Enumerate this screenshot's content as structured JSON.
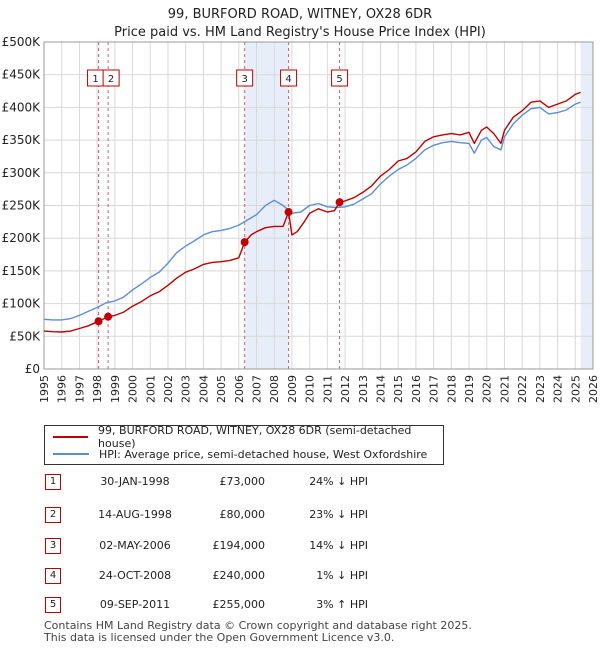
{
  "chart_data": {
    "type": "line",
    "title": "99, BURFORD ROAD, WITNEY, OX28 6DR",
    "subtitle": "Price paid vs. HM Land Registry's House Price Index (HPI)",
    "xlim": [
      1995,
      2026
    ],
    "ylim": [
      0,
      500000
    ],
    "x_ticks": [
      1995,
      1996,
      1997,
      1998,
      1999,
      2000,
      2001,
      2002,
      2003,
      2004,
      2005,
      2006,
      2007,
      2008,
      2009,
      2010,
      2011,
      2012,
      2013,
      2014,
      2015,
      2016,
      2017,
      2018,
      2019,
      2020,
      2021,
      2022,
      2023,
      2024,
      2025,
      2026
    ],
    "y_ticks": [
      {
        "value": 0,
        "label": "£0"
      },
      {
        "value": 50000,
        "label": "£50K"
      },
      {
        "value": 100000,
        "label": "£100K"
      },
      {
        "value": 150000,
        "label": "£150K"
      },
      {
        "value": 200000,
        "label": "£200K"
      },
      {
        "value": 250000,
        "label": "£250K"
      },
      {
        "value": 300000,
        "label": "£300K"
      },
      {
        "value": 350000,
        "label": "£350K"
      },
      {
        "value": 400000,
        "label": "£400K"
      },
      {
        "value": 450000,
        "label": "£450K"
      },
      {
        "value": 500000,
        "label": "£500K"
      }
    ],
    "shaded_bands": [
      [
        2006.33,
        2008.81
      ],
      [
        2025.3,
        2026
      ]
    ],
    "series": [
      {
        "name": "99, BURFORD ROAD, WITNEY, OX28 6DR (semi-detached house)",
        "color": "#c00000",
        "points": [
          [
            1995,
            58000
          ],
          [
            1995.5,
            57000
          ],
          [
            1996,
            56500
          ],
          [
            1996.5,
            58000
          ],
          [
            1997,
            62000
          ],
          [
            1997.5,
            66000
          ],
          [
            1998.08,
            73000
          ],
          [
            1998.62,
            80000
          ],
          [
            1999,
            82000
          ],
          [
            1999.5,
            87000
          ],
          [
            2000,
            96000
          ],
          [
            2000.5,
            103000
          ],
          [
            2001,
            112000
          ],
          [
            2001.5,
            118000
          ],
          [
            2002,
            128000
          ],
          [
            2002.5,
            139000
          ],
          [
            2003,
            148000
          ],
          [
            2003.5,
            153000
          ],
          [
            2004,
            160000
          ],
          [
            2004.5,
            163000
          ],
          [
            2005,
            164000
          ],
          [
            2005.5,
            166000
          ],
          [
            2006,
            170000
          ],
          [
            2006.33,
            194000
          ],
          [
            2006.7,
            205000
          ],
          [
            2007,
            210000
          ],
          [
            2007.5,
            216000
          ],
          [
            2008,
            218000
          ],
          [
            2008.5,
            218000
          ],
          [
            2008.81,
            240000
          ],
          [
            2009,
            205000
          ],
          [
            2009.3,
            210000
          ],
          [
            2009.7,
            225000
          ],
          [
            2010,
            238000
          ],
          [
            2010.5,
            245000
          ],
          [
            2011,
            240000
          ],
          [
            2011.4,
            242000
          ],
          [
            2011.69,
            255000
          ],
          [
            2012,
            257000
          ],
          [
            2012.5,
            262000
          ],
          [
            2013,
            270000
          ],
          [
            2013.5,
            280000
          ],
          [
            2014,
            295000
          ],
          [
            2014.5,
            305000
          ],
          [
            2015,
            318000
          ],
          [
            2015.5,
            322000
          ],
          [
            2016,
            332000
          ],
          [
            2016.5,
            348000
          ],
          [
            2017,
            355000
          ],
          [
            2017.5,
            358000
          ],
          [
            2018,
            360000
          ],
          [
            2018.5,
            358000
          ],
          [
            2019,
            362000
          ],
          [
            2019.3,
            345000
          ],
          [
            2019.7,
            365000
          ],
          [
            2020,
            370000
          ],
          [
            2020.4,
            360000
          ],
          [
            2020.8,
            345000
          ],
          [
            2021,
            365000
          ],
          [
            2021.5,
            385000
          ],
          [
            2022,
            395000
          ],
          [
            2022.5,
            408000
          ],
          [
            2023,
            410000
          ],
          [
            2023.5,
            400000
          ],
          [
            2024,
            405000
          ],
          [
            2024.5,
            410000
          ],
          [
            2025,
            420000
          ],
          [
            2025.3,
            423000
          ]
        ]
      },
      {
        "name": "HPI: Average price, semi-detached house, West Oxfordshire",
        "color": "#5b8ed4",
        "points": [
          [
            1995,
            76000
          ],
          [
            1995.5,
            75000
          ],
          [
            1996,
            75000
          ],
          [
            1996.5,
            77000
          ],
          [
            1997,
            82000
          ],
          [
            1997.5,
            88000
          ],
          [
            1998,
            94000
          ],
          [
            1998.5,
            101000
          ],
          [
            1999,
            104000
          ],
          [
            1999.5,
            110000
          ],
          [
            2000,
            121000
          ],
          [
            2000.5,
            130000
          ],
          [
            2001,
            140000
          ],
          [
            2001.5,
            148000
          ],
          [
            2002,
            162000
          ],
          [
            2002.5,
            178000
          ],
          [
            2003,
            188000
          ],
          [
            2003.5,
            196000
          ],
          [
            2004,
            205000
          ],
          [
            2004.5,
            210000
          ],
          [
            2005,
            212000
          ],
          [
            2005.5,
            215000
          ],
          [
            2006,
            220000
          ],
          [
            2006.5,
            228000
          ],
          [
            2007,
            236000
          ],
          [
            2007.5,
            250000
          ],
          [
            2008,
            258000
          ],
          [
            2008.5,
            250000
          ],
          [
            2009,
            238000
          ],
          [
            2009.5,
            240000
          ],
          [
            2010,
            250000
          ],
          [
            2010.5,
            253000
          ],
          [
            2011,
            248000
          ],
          [
            2011.5,
            247000
          ],
          [
            2012,
            248000
          ],
          [
            2012.5,
            252000
          ],
          [
            2013,
            260000
          ],
          [
            2013.5,
            268000
          ],
          [
            2014,
            283000
          ],
          [
            2014.5,
            295000
          ],
          [
            2015,
            305000
          ],
          [
            2015.5,
            312000
          ],
          [
            2016,
            322000
          ],
          [
            2016.5,
            335000
          ],
          [
            2017,
            342000
          ],
          [
            2017.5,
            346000
          ],
          [
            2018,
            348000
          ],
          [
            2018.5,
            346000
          ],
          [
            2019,
            345000
          ],
          [
            2019.3,
            330000
          ],
          [
            2019.7,
            350000
          ],
          [
            2020,
            354000
          ],
          [
            2020.4,
            340000
          ],
          [
            2020.8,
            335000
          ],
          [
            2021,
            355000
          ],
          [
            2021.5,
            375000
          ],
          [
            2022,
            388000
          ],
          [
            2022.5,
            398000
          ],
          [
            2023,
            400000
          ],
          [
            2023.5,
            390000
          ],
          [
            2024,
            392000
          ],
          [
            2024.5,
            396000
          ],
          [
            2025,
            405000
          ],
          [
            2025.3,
            408000
          ]
        ]
      }
    ],
    "sales": [
      {
        "id": "1",
        "x": 1998.08,
        "value": 73000
      },
      {
        "id": "2",
        "x": 1998.62,
        "value": 80000
      },
      {
        "id": "3",
        "x": 2006.33,
        "value": 194000
      },
      {
        "id": "4",
        "x": 2008.81,
        "value": 240000
      },
      {
        "id": "5",
        "x": 2011.69,
        "value": 255000
      }
    ]
  },
  "legend": {
    "items": [
      {
        "label": "99, BURFORD ROAD, WITNEY, OX28 6DR (semi-detached house)",
        "color": "#c00000"
      },
      {
        "label": "HPI: Average price, semi-detached house, West Oxfordshire",
        "color": "#5b8ed4"
      }
    ]
  },
  "transactions": [
    {
      "num": "1",
      "date": "30-JAN-1998",
      "price": "£73,000",
      "delta": "24% ↓ HPI"
    },
    {
      "num": "2",
      "date": "14-AUG-1998",
      "price": "£80,000",
      "delta": "23% ↓ HPI"
    },
    {
      "num": "3",
      "date": "02-MAY-2006",
      "price": "£194,000",
      "delta": "14% ↓ HPI"
    },
    {
      "num": "4",
      "date": "24-OCT-2008",
      "price": "£240,000",
      "delta": "1% ↓ HPI"
    },
    {
      "num": "5",
      "date": "09-SEP-2011",
      "price": "£255,000",
      "delta": "3% ↑ HPI"
    }
  ],
  "footer": {
    "line1": "Contains HM Land Registry data © Crown copyright and database right 2025.",
    "line2": "This data is licensed under the Open Government Licence v3.0."
  }
}
